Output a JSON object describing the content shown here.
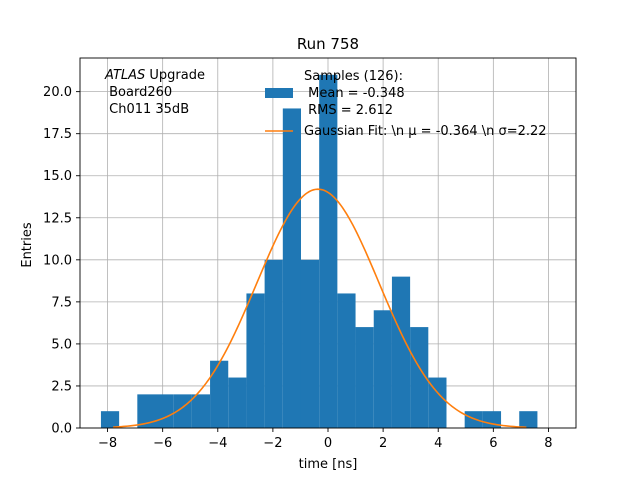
{
  "chart_data": {
    "type": "bar",
    "title": "Run 758",
    "xlabel": "time [ns]",
    "ylabel": "Entries",
    "xlim": [
      -9.0,
      9.0
    ],
    "ylim": [
      0,
      22.0
    ],
    "grid": true,
    "x_ticks": [
      -8,
      -6,
      -4,
      -2,
      0,
      2,
      4,
      6,
      8
    ],
    "x_tick_labels": [
      "−8",
      "−6",
      "−4",
      "−2",
      "0",
      "2",
      "4",
      "6",
      "8"
    ],
    "y_ticks": [
      0.0,
      2.5,
      5.0,
      7.5,
      10.0,
      12.5,
      15.0,
      17.5,
      20.0
    ],
    "y_tick_labels": [
      "0.0",
      "2.5",
      "5.0",
      "7.5",
      "10.0",
      "12.5",
      "15.0",
      "17.5",
      "20.0"
    ],
    "bin_edges": [
      -8.24,
      -7.58,
      -6.92,
      -6.26,
      -5.6,
      -4.94,
      -4.28,
      -3.62,
      -2.96,
      -2.3,
      -1.64,
      -0.98,
      -0.32,
      0.34,
      1.0,
      1.66,
      2.32,
      2.98,
      3.64,
      4.3,
      4.96,
      5.62,
      6.28,
      6.94,
      7.6
    ],
    "bin_counts": [
      1,
      0,
      2,
      2,
      2,
      2,
      4,
      3,
      8,
      10,
      19,
      10,
      21,
      8,
      6,
      7,
      9,
      6,
      3,
      0,
      1,
      1,
      0,
      1
    ],
    "series": [
      {
        "name": "Samples (126):\n Mean = -0.348\n RMS = 2.612",
        "type": "histogram",
        "color": "#1f77b4"
      },
      {
        "name": "Gaussian Fit: \\n $\\mu$ = -0.364 \\n $\\sigma$=2.22",
        "type": "line",
        "color": "#ff7f0e",
        "amplitude": 14.2,
        "mu": -0.364,
        "sigma": 2.22,
        "x_range": [
          -7.8,
          7.2
        ]
      }
    ],
    "legend_position": "top-right",
    "legend_entries": [
      [
        "Samples (126):",
        " Mean = -0.348",
        " RMS = 2.612"
      ],
      [
        "Gaussian Fit: \\n μ = -0.364 \\n σ=2.22"
      ]
    ],
    "annotation": {
      "italic_part": "ATLAS",
      "rest_part": " Upgrade",
      "line2": " Board260",
      "line3": " Ch011 35dB"
    }
  }
}
